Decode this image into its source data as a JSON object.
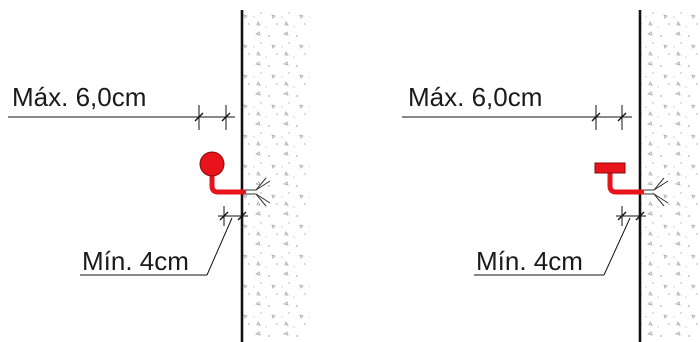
{
  "left_detail": {
    "max_label": "Máx. 6,0cm",
    "min_label": "Mín. 4cm",
    "anchor_head": "round"
  },
  "right_detail": {
    "max_label": "Máx. 6,0cm",
    "min_label": "Mín. 4cm",
    "anchor_head": "flat"
  },
  "colors": {
    "anchor": "#e8131b",
    "line": "#111111",
    "concrete_speckle": "#9a9a9a"
  }
}
